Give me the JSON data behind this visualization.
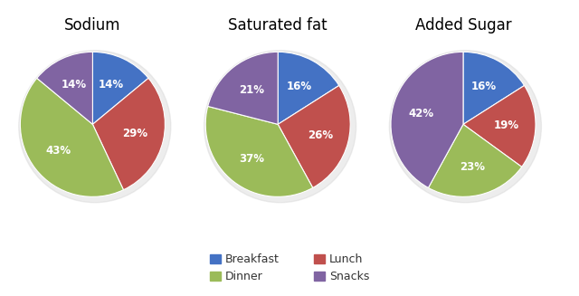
{
  "charts": [
    {
      "title": "Sodium",
      "values": [
        14,
        29,
        43,
        14
      ],
      "labels": [
        "14%",
        "29%",
        "43%",
        "14%"
      ],
      "startangle": 90
    },
    {
      "title": "Saturated fat",
      "values": [
        16,
        26,
        37,
        21
      ],
      "labels": [
        "16%",
        "26%",
        "37%",
        "21%"
      ],
      "startangle": 90
    },
    {
      "title": "Added Sugar",
      "values": [
        16,
        19,
        23,
        42
      ],
      "labels": [
        "16%",
        "19%",
        "23%",
        "42%"
      ],
      "startangle": 90
    }
  ],
  "categories": [
    "Breakfast",
    "Lunch",
    "Dinner",
    "Snacks"
  ],
  "colors": [
    "#4472C4",
    "#C0504D",
    "#9BBB59",
    "#8064A2"
  ],
  "legend_labels": [
    "Breakfast",
    "Lunch",
    "Dinner",
    "Snacks"
  ],
  "background_color": "#FFFFFF",
  "text_color": "#FFFFFF",
  "label_fontsize": 8.5,
  "title_fontsize": 12
}
